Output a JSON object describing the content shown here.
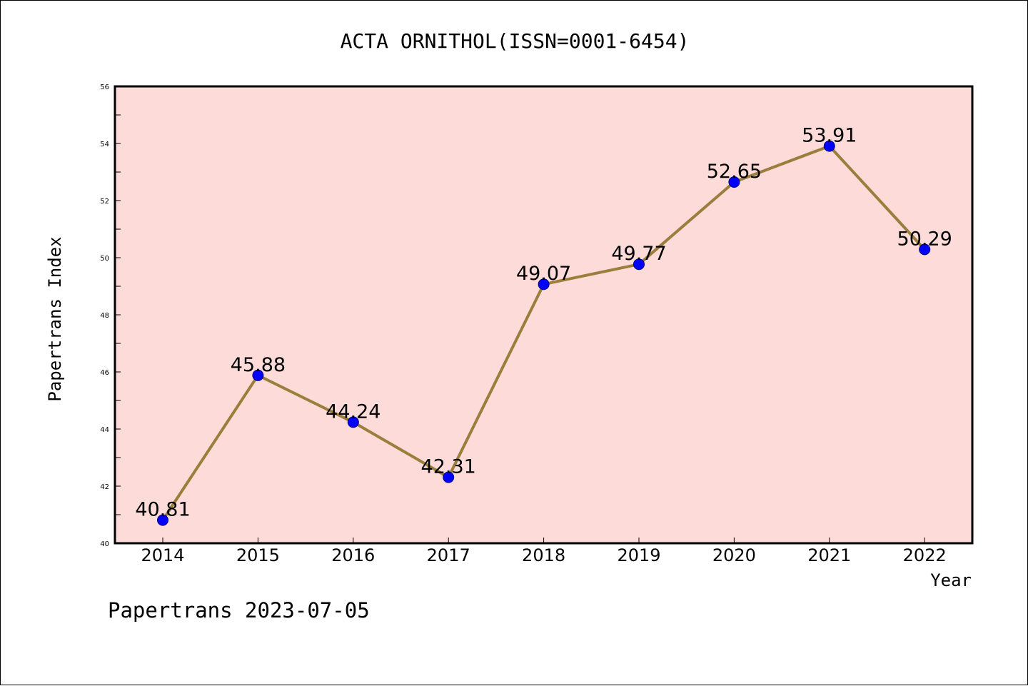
{
  "chart_data": {
    "type": "line",
    "title": "ACTA ORNITHOL(ISSN=0001-6454)",
    "xlabel": "Year",
    "ylabel": "Papertrans Index",
    "categories": [
      "2014",
      "2015",
      "2016",
      "2017",
      "2018",
      "2019",
      "2020",
      "2021",
      "2022"
    ],
    "values": [
      40.81,
      45.88,
      44.24,
      42.31,
      49.07,
      49.77,
      52.65,
      53.91,
      50.29
    ],
    "data_labels": [
      "40.81",
      "45.88",
      "44.24",
      "42.31",
      "49.07",
      "49.77",
      "52.65",
      "53.91",
      "50.29"
    ],
    "ylim": [
      40,
      56
    ],
    "y_ticks": [
      "40",
      "42",
      "44",
      "46",
      "48",
      "50",
      "52",
      "54",
      "56"
    ],
    "grid": false,
    "legend": "none",
    "colors": {
      "plot_background": "#fddbd9",
      "line": "#9b7e3c",
      "marker": "#0000ff",
      "marker_edge": "#00007a",
      "axis": "#000000"
    }
  },
  "footer": {
    "text": "Papertrans 2023-07-05"
  }
}
